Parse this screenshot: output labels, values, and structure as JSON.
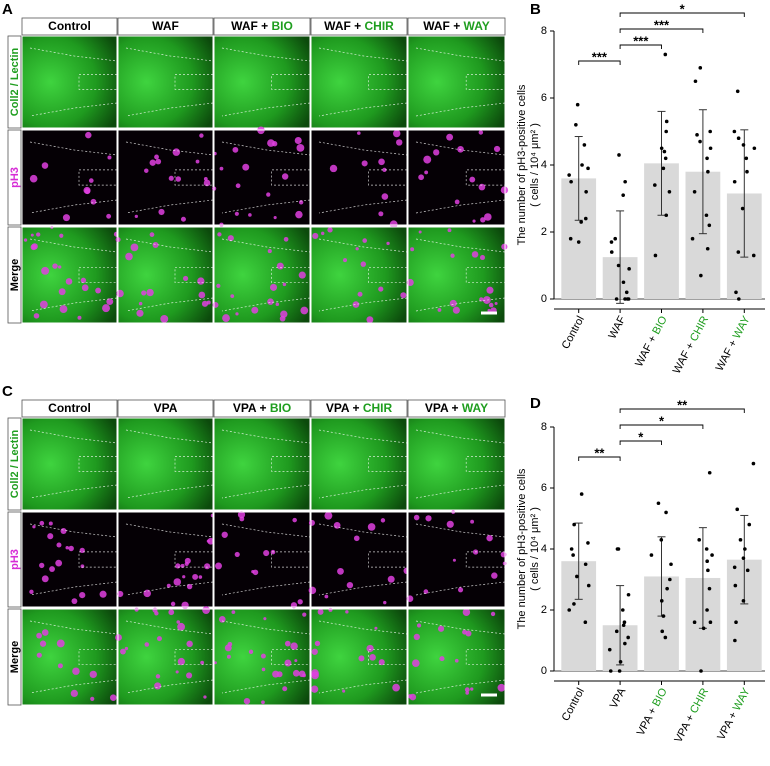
{
  "highlight_color": "#1f9e1f",
  "panels": [
    {
      "letter": "A",
      "columns": [
        "Control",
        "WAF",
        "WAF + BIO",
        "WAF + CHIR",
        "WAF + WAY"
      ],
      "rows": [
        "Coll2 / Lectin",
        "pH3",
        "Merge"
      ]
    },
    {
      "letter": "C",
      "columns": [
        "Control",
        "VPA",
        "VPA + BIO",
        "VPA + CHIR",
        "VPA + WAY"
      ],
      "rows": [
        "Coll2 / Lectin",
        "pH3",
        "Merge"
      ]
    }
  ],
  "chart_data": [
    {
      "type": "bar",
      "letter": "B",
      "color": "#d9d9d9",
      "ylabel": [
        "The number of pH3-positive cells",
        "( cells / 10⁴ μm² )"
      ],
      "categories": [
        "Control",
        "WAF",
        "WAF + BIO",
        "WAF + CHIR",
        "WAF + WAY"
      ],
      "values": [
        3.6,
        1.25,
        4.05,
        3.8,
        3.15
      ],
      "errors": [
        1.25,
        1.38,
        1.55,
        1.85,
        1.9
      ],
      "points": [
        [
          5.8,
          5.2,
          4.6,
          4.0,
          3.9,
          3.7,
          3.5,
          3.2,
          2.4,
          2.3,
          1.8,
          1.7
        ],
        [
          4.3,
          3.5,
          3.1,
          1.8,
          1.7,
          1.4,
          1.0,
          0.9,
          0.5,
          0.2,
          0,
          0,
          0,
          0
        ],
        [
          7.3,
          5.3,
          5.0,
          4.5,
          4.4,
          4.2,
          3.9,
          3.4,
          3.2,
          2.5,
          1.3
        ],
        [
          6.9,
          6.5,
          5.0,
          4.9,
          4.7,
          4.5,
          4.2,
          3.8,
          3.2,
          2.5,
          2.2,
          1.8,
          1.5,
          0.7
        ],
        [
          6.2,
          5.0,
          4.8,
          4.6,
          4.5,
          4.2,
          3.8,
          3.5,
          2.7,
          1.4,
          1.3,
          0.2,
          0
        ]
      ],
      "ylim": [
        0,
        8
      ],
      "yticks": [
        0,
        2,
        4,
        6,
        8
      ],
      "annotations": [
        {
          "from": 0,
          "to": 1,
          "label": "***"
        },
        {
          "from": 1,
          "to": 2,
          "label": "***"
        },
        {
          "from": 1,
          "to": 3,
          "label": "***"
        },
        {
          "from": 1,
          "to": 4,
          "label": "*"
        }
      ]
    },
    {
      "type": "bar",
      "letter": "D",
      "color": "#d9d9d9",
      "ylabel": [
        "The number of pH3-positive cells",
        "( cells / 10⁴ μm² )"
      ],
      "categories": [
        "Control",
        "VPA",
        "VPA + BIO",
        "VPA + CHIR",
        "VPA + WAY"
      ],
      "values": [
        3.6,
        1.5,
        3.1,
        3.05,
        3.65
      ],
      "errors": [
        1.25,
        1.3,
        1.3,
        1.65,
        1.45
      ],
      "points": [
        [
          5.8,
          4.8,
          4.2,
          4.0,
          3.8,
          3.5,
          3.1,
          2.8,
          2.2,
          2.0,
          1.6
        ],
        [
          4.0,
          4.0,
          2.5,
          2.0,
          1.6,
          1.5,
          1.3,
          1.1,
          0.9,
          0.7,
          0.3,
          0,
          0
        ],
        [
          5.5,
          5.2,
          4.3,
          3.8,
          3.5,
          3.0,
          2.7,
          2.3,
          1.8,
          1.3,
          1.1
        ],
        [
          6.5,
          4.3,
          4.0,
          3.8,
          3.6,
          3.3,
          2.7,
          2.0,
          1.6,
          1.6,
          1.4,
          0
        ],
        [
          6.8,
          5.3,
          4.8,
          4.3,
          4.0,
          3.7,
          3.4,
          3.3,
          2.8,
          2.3,
          1.6,
          1.0
        ]
      ],
      "ylim": [
        0,
        8
      ],
      "yticks": [
        0,
        2,
        4,
        6,
        8
      ],
      "annotations": [
        {
          "from": 0,
          "to": 1,
          "label": "**"
        },
        {
          "from": 1,
          "to": 2,
          "label": "*"
        },
        {
          "from": 1,
          "to": 3,
          "label": "*"
        },
        {
          "from": 1,
          "to": 4,
          "label": "**"
        }
      ]
    }
  ]
}
